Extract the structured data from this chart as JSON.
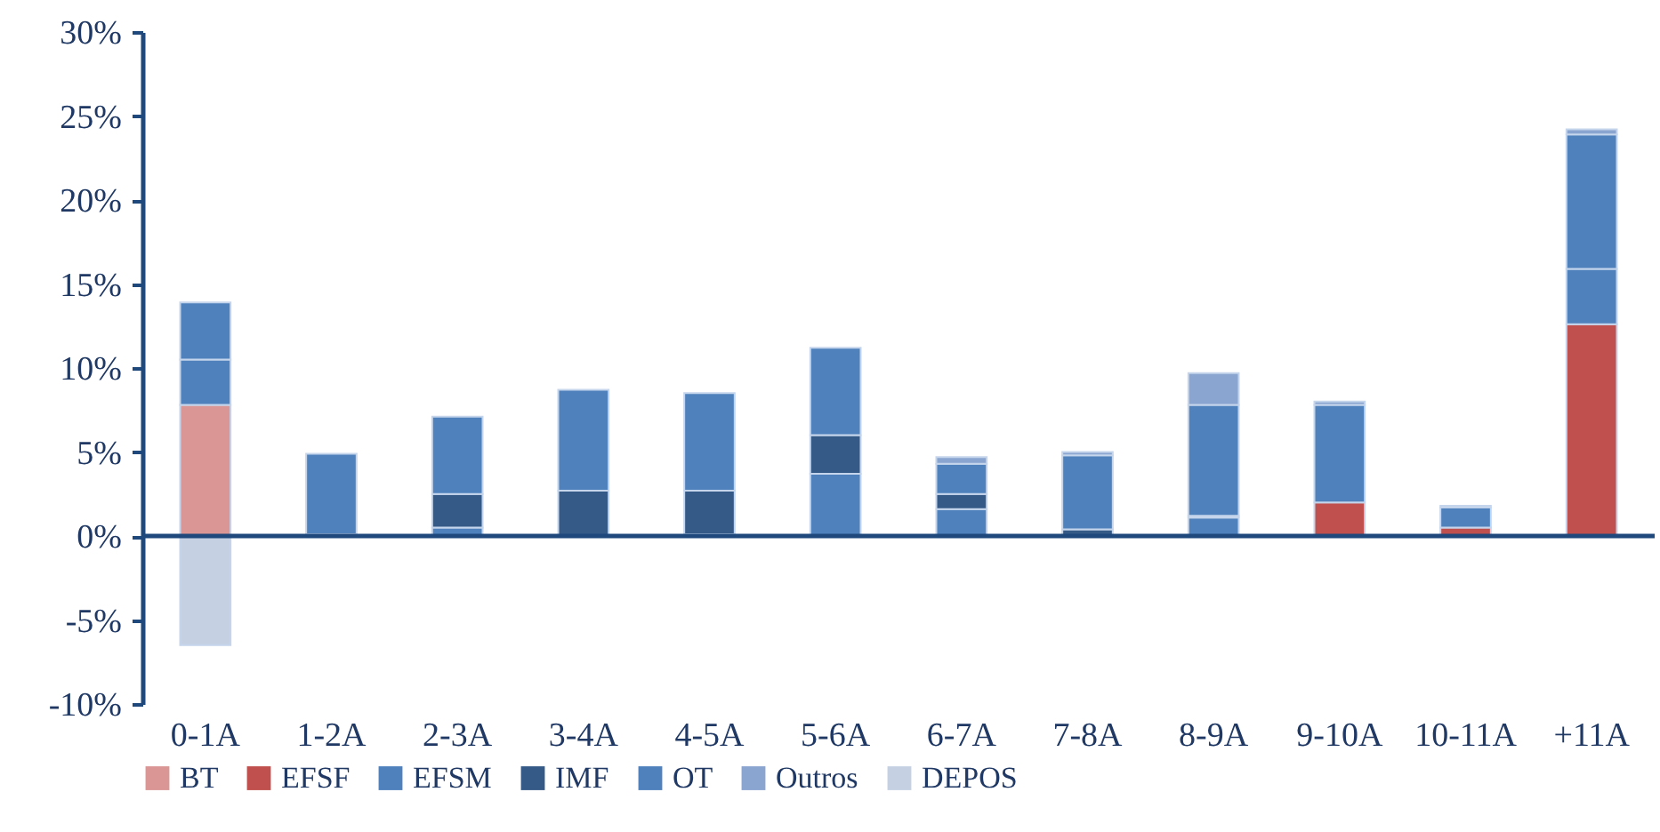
{
  "chart_data": {
    "type": "bar",
    "stacked": true,
    "categories": [
      "0-1A",
      "1-2A",
      "2-3A",
      "3-4A",
      "4-5A",
      "5-6A",
      "6-7A",
      "7-8A",
      "8-9A",
      "9-10A",
      "10-11A",
      "+11A"
    ],
    "series": [
      {
        "name": "BT",
        "color": "#d99694",
        "values": [
          7.8,
          null,
          null,
          null,
          null,
          null,
          null,
          null,
          null,
          null,
          null,
          null
        ]
      },
      {
        "name": "EFSF",
        "color": "#c0504d",
        "values": [
          null,
          null,
          null,
          null,
          null,
          null,
          null,
          null,
          null,
          2.0,
          0.5,
          12.6
        ]
      },
      {
        "name": "EFSM",
        "color": "#4f81bd",
        "values": [
          2.7,
          0.1,
          0.5,
          null,
          0.1,
          3.7,
          1.6,
          null,
          1.1,
          null,
          null,
          3.3
        ]
      },
      {
        "name": "IMF",
        "color": "#355a87",
        "values": [
          null,
          null,
          2.0,
          2.7,
          2.6,
          2.3,
          0.9,
          0.4,
          0.1,
          null,
          null,
          null
        ]
      },
      {
        "name": "OT",
        "color": "#4f81bd",
        "values": [
          3.4,
          4.8,
          4.6,
          6.0,
          5.8,
          5.2,
          1.8,
          4.4,
          6.6,
          5.8,
          1.2,
          8.0
        ]
      },
      {
        "name": "Outros",
        "color": "#8aa5cf",
        "values": [
          null,
          null,
          null,
          null,
          null,
          null,
          0.4,
          0.2,
          1.9,
          0.2,
          0.1,
          0.3
        ]
      },
      {
        "name": "DEPOS",
        "color": "#c5d1e3",
        "values": [
          -6.5,
          null,
          null,
          null,
          null,
          null,
          null,
          null,
          null,
          null,
          null,
          null
        ]
      }
    ],
    "ylim": [
      -10,
      30
    ],
    "yticks": [
      {
        "value": -10,
        "label": "-10%"
      },
      {
        "value": -5,
        "label": "-5%"
      },
      {
        "value": 0,
        "label": "0%"
      },
      {
        "value": 5,
        "label": "5%"
      },
      {
        "value": 10,
        "label": "10%"
      },
      {
        "value": 15,
        "label": "15%"
      },
      {
        "value": 20,
        "label": "20%"
      },
      {
        "value": 25,
        "label": "25%"
      },
      {
        "value": 30,
        "label": "30%"
      }
    ],
    "ref_lines": [
      {
        "axis": "y",
        "value": 0,
        "color": "#1f497d"
      }
    ],
    "grid": false,
    "legend": "bottom"
  }
}
